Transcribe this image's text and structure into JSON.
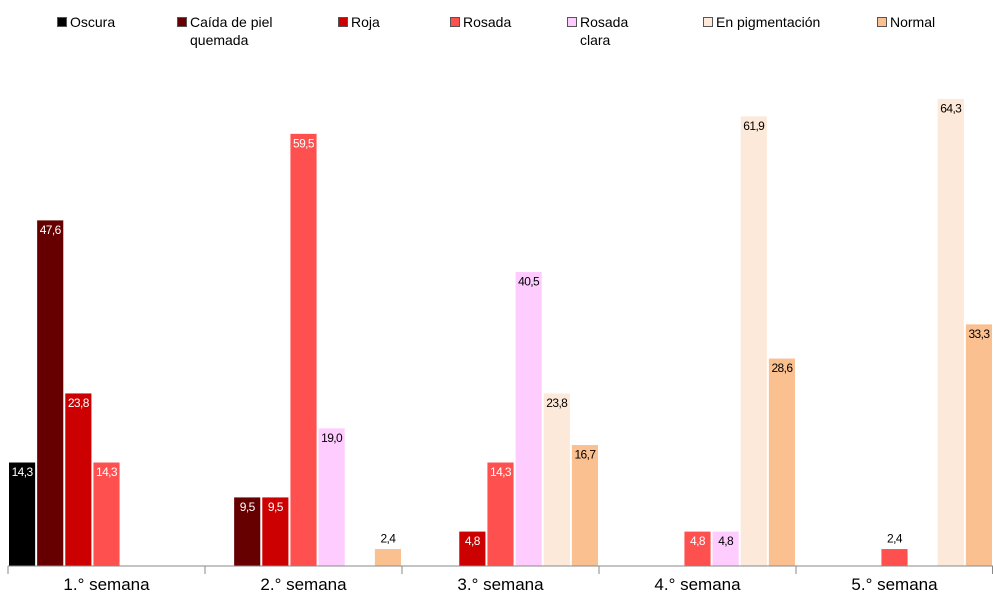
{
  "chart_data": {
    "type": "bar",
    "categories": [
      "1.° semana",
      "2.° semana",
      "3.° semana",
      "4.° semana",
      "5.° semana"
    ],
    "series": [
      {
        "name": "Oscura",
        "color": "#000000",
        "values": [
          14.3,
          null,
          null,
          null,
          null
        ],
        "value_labels": [
          "14,3",
          null,
          null,
          null,
          null
        ]
      },
      {
        "name": "Caída de piel quemada",
        "color": "#660000",
        "values": [
          47.6,
          9.5,
          null,
          null,
          null
        ],
        "value_labels": [
          "47,6",
          "9,5",
          null,
          null,
          null
        ]
      },
      {
        "name": "Roja",
        "color": "#cc0000",
        "values": [
          23.8,
          9.5,
          4.8,
          null,
          null
        ],
        "value_labels": [
          "23,8",
          "9,5",
          "4,8",
          null,
          null
        ]
      },
      {
        "name": "Rosada",
        "color": "#ff5050",
        "values": [
          14.3,
          59.5,
          14.3,
          4.8,
          2.4
        ],
        "value_labels": [
          "14,3",
          "59,5",
          "14,3",
          "4,8",
          "2,4"
        ]
      },
      {
        "name": "Rosada clara",
        "color": "#ffccff",
        "values": [
          null,
          19.0,
          40.5,
          4.8,
          null
        ],
        "value_labels": [
          null,
          "19,0",
          "40,5",
          "4,8",
          null
        ]
      },
      {
        "name": "En pigmentación",
        "color": "#fde9d9",
        "values": [
          null,
          null,
          23.8,
          61.9,
          64.3
        ],
        "value_labels": [
          null,
          null,
          "23,8",
          "61,9",
          "64,3"
        ]
      },
      {
        "name": "Normal",
        "color": "#fac090",
        "values": [
          null,
          2.4,
          16.7,
          28.6,
          33.3
        ],
        "value_labels": [
          null,
          "2,4",
          "16,7",
          "28,6",
          "33,3"
        ]
      }
    ],
    "ylim": [
      0,
      70
    ],
    "legend": "top"
  }
}
